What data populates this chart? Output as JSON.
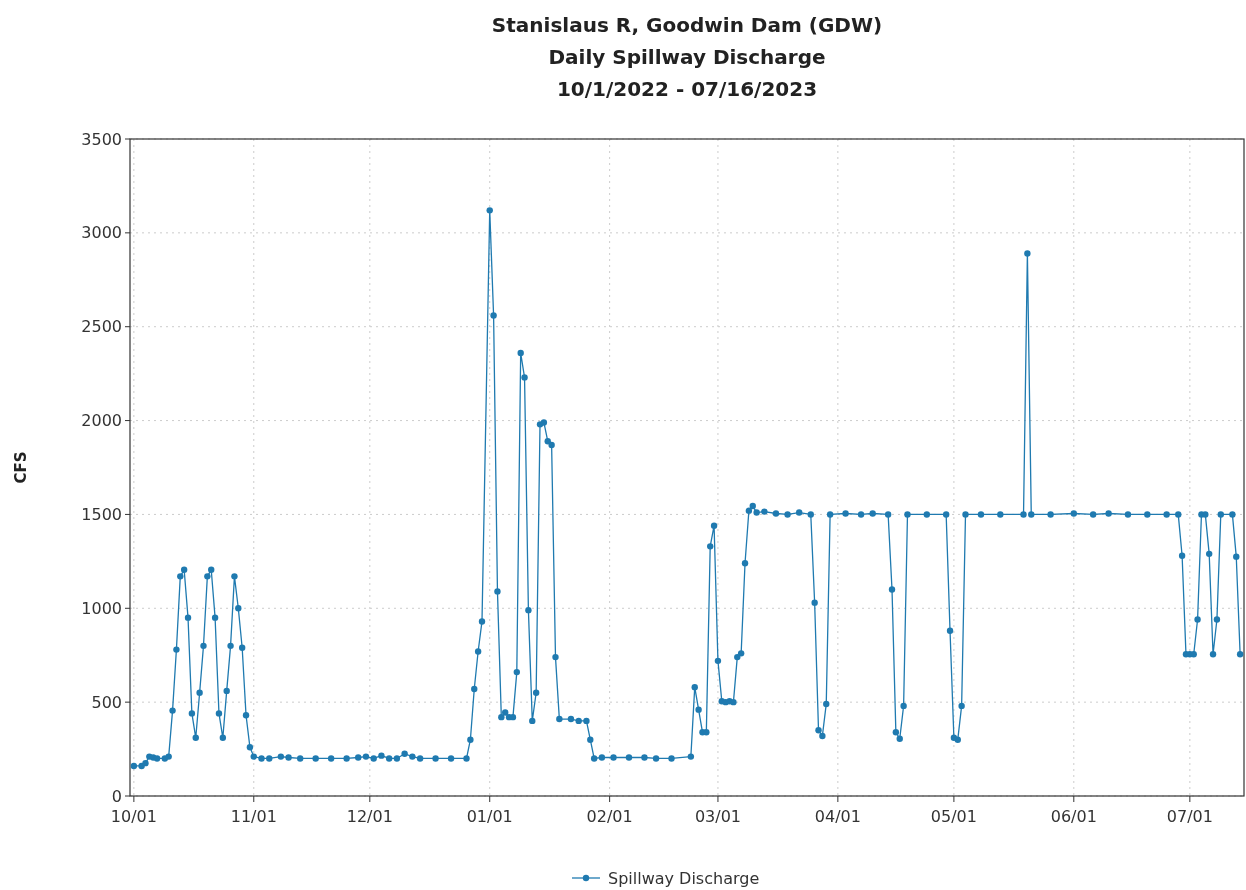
{
  "chart_data": {
    "type": "line",
    "title": "Stanislaus R, Goodwin Dam (GDW)\nDaily Spillway Discharge\n10/1/2022 - 07/16/2023",
    "ylabel": "CFS",
    "xlim": [
      "2022-09-30",
      "2023-07-15"
    ],
    "xticks": [
      {
        "value": "2022-10-01",
        "label": "10/01"
      },
      {
        "value": "2022-11-01",
        "label": "11/01"
      },
      {
        "value": "2022-12-01",
        "label": "12/01"
      },
      {
        "value": "2023-01-01",
        "label": "01/01"
      },
      {
        "value": "2023-02-01",
        "label": "02/01"
      },
      {
        "value": "2023-03-01",
        "label": "03/01"
      },
      {
        "value": "2023-04-01",
        "label": "04/01"
      },
      {
        "value": "2023-05-01",
        "label": "05/01"
      },
      {
        "value": "2023-06-01",
        "label": "06/01"
      },
      {
        "value": "2023-07-01",
        "label": "07/01"
      }
    ],
    "ylim": [
      0,
      3500
    ],
    "yticks": [
      0,
      500,
      1000,
      1500,
      2000,
      2500,
      3000,
      3500
    ],
    "grid": true,
    "legend": "bottom",
    "marker": "circle",
    "line_style": "solid",
    "series": [
      {
        "name": "Spillway Discharge",
        "color": "#1f7ab0",
        "x": [
          "2022-10-01",
          "2022-10-03",
          "2022-10-04",
          "2022-10-05",
          "2022-10-06",
          "2022-10-07",
          "2022-10-09",
          "2022-10-10",
          "2022-10-11",
          "2022-10-12",
          "2022-10-13",
          "2022-10-14",
          "2022-10-15",
          "2022-10-16",
          "2022-10-17",
          "2022-10-18",
          "2022-10-19",
          "2022-10-20",
          "2022-10-21",
          "2022-10-22",
          "2022-10-23",
          "2022-10-24",
          "2022-10-25",
          "2022-10-26",
          "2022-10-27",
          "2022-10-28",
          "2022-10-29",
          "2022-10-30",
          "2022-10-31",
          "2022-11-01",
          "2022-11-03",
          "2022-11-05",
          "2022-11-08",
          "2022-11-10",
          "2022-11-13",
          "2022-11-17",
          "2022-11-21",
          "2022-11-25",
          "2022-11-28",
          "2022-11-30",
          "2022-12-02",
          "2022-12-04",
          "2022-12-06",
          "2022-12-08",
          "2022-12-10",
          "2022-12-12",
          "2022-12-14",
          "2022-12-18",
          "2022-12-22",
          "2022-12-26",
          "2022-12-27",
          "2022-12-28",
          "2022-12-29",
          "2022-12-30",
          "2023-01-01",
          "2023-01-02",
          "2023-01-03",
          "2023-01-04",
          "2023-01-05",
          "2023-01-06",
          "2023-01-07",
          "2023-01-08",
          "2023-01-09",
          "2023-01-10",
          "2023-01-11",
          "2023-01-12",
          "2023-01-13",
          "2023-01-14",
          "2023-01-15",
          "2023-01-16",
          "2023-01-17",
          "2023-01-18",
          "2023-01-19",
          "2023-01-22",
          "2023-01-24",
          "2023-01-26",
          "2023-01-27",
          "2023-01-28",
          "2023-01-30",
          "2023-02-02",
          "2023-02-06",
          "2023-02-10",
          "2023-02-13",
          "2023-02-17",
          "2023-02-22",
          "2023-02-23",
          "2023-02-24",
          "2023-02-25",
          "2023-02-26",
          "2023-02-27",
          "2023-02-28",
          "2023-03-01",
          "2023-03-02",
          "2023-03-03",
          "2023-03-04",
          "2023-03-05",
          "2023-03-06",
          "2023-03-07",
          "2023-03-08",
          "2023-03-09",
          "2023-03-10",
          "2023-03-11",
          "2023-03-13",
          "2023-03-16",
          "2023-03-19",
          "2023-03-22",
          "2023-03-25",
          "2023-03-26",
          "2023-03-27",
          "2023-03-28",
          "2023-03-29",
          "2023-03-30",
          "2023-04-03",
          "2023-04-07",
          "2023-04-10",
          "2023-04-14",
          "2023-04-15",
          "2023-04-16",
          "2023-04-17",
          "2023-04-18",
          "2023-04-19",
          "2023-04-24",
          "2023-04-29",
          "2023-04-30",
          "2023-05-01",
          "2023-05-02",
          "2023-05-03",
          "2023-05-04",
          "2023-05-08",
          "2023-05-13",
          "2023-05-19",
          "2023-05-20",
          "2023-05-21",
          "2023-05-26",
          "2023-06-01",
          "2023-06-06",
          "2023-06-10",
          "2023-06-15",
          "2023-06-20",
          "2023-06-25",
          "2023-06-28",
          "2023-06-29",
          "2023-06-30",
          "2023-07-01",
          "2023-07-02",
          "2023-07-03",
          "2023-07-04",
          "2023-07-05",
          "2023-07-06",
          "2023-07-07",
          "2023-07-08",
          "2023-07-09",
          "2023-07-12",
          "2023-07-13",
          "2023-07-14"
        ],
        "values": [
          160,
          160,
          175,
          210,
          205,
          200,
          200,
          210,
          455,
          780,
          1170,
          1205,
          950,
          440,
          310,
          550,
          800,
          1170,
          1205,
          950,
          440,
          310,
          560,
          800,
          1170,
          1000,
          790,
          430,
          260,
          210,
          200,
          200,
          210,
          205,
          200,
          200,
          200,
          200,
          205,
          210,
          200,
          215,
          200,
          200,
          225,
          210,
          200,
          200,
          200,
          200,
          300,
          570,
          770,
          930,
          3120,
          2560,
          1090,
          420,
          445,
          420,
          420,
          660,
          2360,
          2230,
          990,
          400,
          550,
          1980,
          1990,
          1890,
          1870,
          740,
          410,
          410,
          400,
          400,
          300,
          200,
          205,
          205,
          205,
          205,
          200,
          200,
          210,
          580,
          460,
          340,
          340,
          1330,
          1440,
          720,
          505,
          500,
          505,
          500,
          740,
          760,
          1240,
          1520,
          1545,
          1510,
          1515,
          1505,
          1500,
          1510,
          1500,
          1030,
          350,
          320,
          490,
          1500,
          1505,
          1500,
          1505,
          1500,
          1100,
          340,
          305,
          480,
          1500,
          1500,
          1500,
          880,
          310,
          300,
          480,
          1500,
          1500,
          1500,
          1500,
          2890,
          1500,
          1500,
          1505,
          1500,
          1505,
          1500,
          1500,
          1500,
          1500,
          1280,
          755,
          755,
          755,
          940,
          1500,
          1500,
          1290,
          755,
          940,
          1500,
          1500,
          1275,
          755
        ]
      }
    ]
  }
}
